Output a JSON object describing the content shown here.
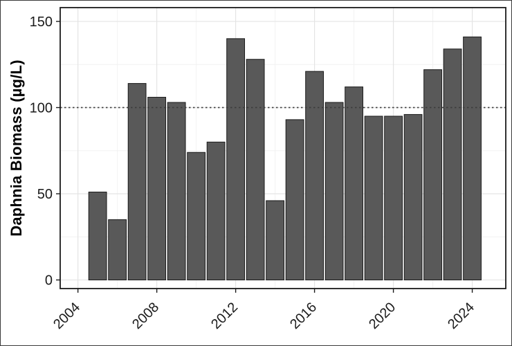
{
  "chart_data": {
    "type": "bar",
    "title": "",
    "xlabel": "",
    "ylabel": "Daphnia Biomass (µg/L)",
    "categories": [
      2005,
      2006,
      2007,
      2008,
      2009,
      2010,
      2011,
      2012,
      2013,
      2014,
      2015,
      2016,
      2017,
      2018,
      2019,
      2020,
      2021,
      2022,
      2023,
      2024
    ],
    "values": [
      51,
      35,
      114,
      106,
      103,
      74,
      80,
      140,
      128,
      46,
      93,
      121,
      103,
      112,
      95,
      95,
      96,
      122,
      134,
      141
    ],
    "x_ticks": [
      2004,
      2008,
      2012,
      2016,
      2020,
      2024
    ],
    "x_minor_ticks": [
      2006,
      2010,
      2014,
      2018,
      2022
    ],
    "y_ticks": [
      0,
      50,
      100,
      150
    ],
    "y_minor_ticks": [
      25,
      75,
      125
    ],
    "xlim": [
      2003.1,
      2025.7
    ],
    "ylim": [
      -5,
      158
    ],
    "reference_line": {
      "y": 100,
      "style": "dotted"
    },
    "bar_fill": "#595959",
    "bar_stroke": "#1a1a1a",
    "grid_major_color": "#e4e4e4",
    "grid_minor_color": "#f2f2f2",
    "panel_border_color": "#1a1a1a",
    "axis_text_color": "#1a1a1a",
    "tick_mark_color": "#1a1a1a",
    "reference_line_color": "#3c3c3c",
    "grid": true,
    "legend": "none"
  }
}
